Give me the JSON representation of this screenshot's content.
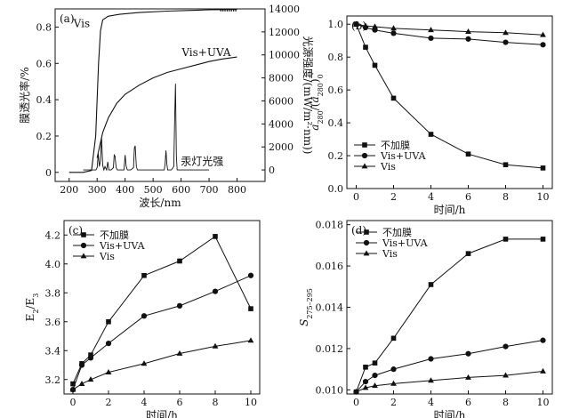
{
  "chart_data": [
    {
      "id": "a",
      "panel_label": "(a)",
      "type": "line",
      "xlabel": "波长/nm",
      "ylabel_left": "膜透光率/%",
      "ylabel_right": "光源强度/(mW/m²·nm))",
      "xlim": [
        150,
        900
      ],
      "ylim_left": [
        -0.05,
        0.9
      ],
      "ylim_right": [
        -1000,
        14000
      ],
      "xticks": [
        200,
        300,
        400,
        500,
        600,
        700,
        800
      ],
      "yticks_left": [
        0,
        0.2,
        0.4,
        0.6,
        0.8
      ],
      "yticks_right": [
        0,
        2000,
        4000,
        6000,
        8000,
        10000,
        12000,
        14000
      ],
      "annotations": {
        "vis": "Vis",
        "vis_uva": "Vis+UVA",
        "lamp": "汞灯光强"
      },
      "series": [
        {
          "name": "Vis",
          "axis": "left",
          "x": [
            200,
            250,
            280,
            295,
            305,
            312,
            320,
            340,
            380,
            450,
            550,
            650,
            700,
            750,
            800
          ],
          "y": [
            0,
            0,
            0.01,
            0.2,
            0.6,
            0.78,
            0.84,
            0.86,
            0.87,
            0.88,
            0.888,
            0.892,
            0.895,
            0.896,
            0.897
          ]
        },
        {
          "name": "Vis+UVA",
          "axis": "left",
          "x": [
            300,
            310,
            320,
            340,
            370,
            400,
            450,
            500,
            550,
            600,
            650,
            700,
            750,
            800
          ],
          "y": [
            0.08,
            0.15,
            0.22,
            0.3,
            0.38,
            0.43,
            0.48,
            0.52,
            0.55,
            0.57,
            0.59,
            0.61,
            0.625,
            0.635
          ]
        },
        {
          "name": "汞灯光强",
          "axis": "right",
          "x": [
            250,
            280,
            296,
            300,
            304,
            308,
            312,
            316,
            320,
            324,
            328,
            334,
            338,
            342,
            350,
            358,
            361,
            364,
            368,
            372,
            380,
            396,
            400,
            404,
            408,
            412,
            420,
            430,
            433,
            436,
            440,
            444,
            460,
            500,
            540,
            543,
            546,
            549,
            552,
            565,
            574,
            577,
            580,
            583,
            586,
            600,
            650,
            700
          ],
          "y": [
            0,
            0,
            0,
            200,
            1400,
            300,
            800,
            2800,
            400,
            0,
            300,
            0,
            700,
            0,
            0,
            200,
            1300,
            1200,
            200,
            0,
            0,
            0,
            1300,
            300,
            0,
            0,
            0,
            200,
            1900,
            2100,
            300,
            0,
            0,
            0,
            0,
            600,
            1700,
            500,
            0,
            0,
            300,
            4500,
            7500,
            1200,
            0,
            0,
            0,
            0
          ]
        }
      ]
    },
    {
      "id": "b",
      "panel_label": "(b)",
      "type": "line",
      "xlabel": "时间/h",
      "ylabel": "a280/(a280)0",
      "xlim": [
        -0.5,
        10.5
      ],
      "ylim": [
        0,
        1.05
      ],
      "xticks": [
        0,
        2,
        4,
        6,
        8,
        10
      ],
      "yticks": [
        0.0,
        0.2,
        0.4,
        0.6,
        0.8,
        1.0
      ],
      "legend_position": "bottom-left",
      "series": [
        {
          "name": "不加膜",
          "marker": "square",
          "x": [
            0,
            0.5,
            1,
            2,
            4,
            6,
            8,
            10
          ],
          "y": [
            1.0,
            0.86,
            0.75,
            0.55,
            0.33,
            0.21,
            0.145,
            0.125
          ]
        },
        {
          "name": "Vis+UVA",
          "marker": "circle",
          "x": [
            0,
            0.5,
            1,
            2,
            4,
            6,
            8,
            10
          ],
          "y": [
            1.0,
            0.98,
            0.965,
            0.945,
            0.915,
            0.91,
            0.89,
            0.875
          ]
        },
        {
          "name": "Vis",
          "marker": "triangle",
          "x": [
            0,
            0.5,
            1,
            2,
            4,
            6,
            8,
            10
          ],
          "y": [
            1.0,
            0.99,
            0.985,
            0.975,
            0.965,
            0.955,
            0.948,
            0.935
          ]
        }
      ]
    },
    {
      "id": "c",
      "panel_label": "(c)",
      "type": "line",
      "xlabel": "时间/h",
      "ylabel": "E2/E3",
      "xlim": [
        -0.5,
        10.5
      ],
      "ylim": [
        3.1,
        4.3
      ],
      "xticks": [
        0,
        2,
        4,
        6,
        8,
        10
      ],
      "yticks": [
        3.2,
        3.4,
        3.6,
        3.8,
        4.0,
        4.2
      ],
      "legend_position": "top-left",
      "series": [
        {
          "name": "不加膜",
          "marker": "square",
          "x": [
            0,
            0.5,
            1,
            2,
            4,
            6,
            8,
            10
          ],
          "y": [
            3.17,
            3.31,
            3.37,
            3.6,
            3.92,
            4.02,
            4.19,
            3.69
          ]
        },
        {
          "name": "Vis+UVA",
          "marker": "circle",
          "x": [
            0,
            0.5,
            1,
            2,
            4,
            6,
            8,
            10
          ],
          "y": [
            3.13,
            3.3,
            3.35,
            3.45,
            3.64,
            3.71,
            3.81,
            3.92
          ]
        },
        {
          "name": "Vis",
          "marker": "triangle",
          "x": [
            0,
            0.5,
            1,
            2,
            4,
            6,
            8,
            10
          ],
          "y": [
            3.13,
            3.17,
            3.2,
            3.25,
            3.31,
            3.38,
            3.43,
            3.47
          ]
        }
      ]
    },
    {
      "id": "d",
      "panel_label": "(d)",
      "type": "line",
      "xlabel": "时间/h",
      "ylabel": "S275–295",
      "xlim": [
        -0.5,
        10.5
      ],
      "ylim": [
        0.0098,
        0.0182
      ],
      "xticks": [
        0,
        2,
        4,
        6,
        8,
        10
      ],
      "yticks": [
        0.01,
        0.012,
        0.014,
        0.016,
        0.018
      ],
      "legend_position": "top-left",
      "series": [
        {
          "name": "不加膜",
          "marker": "square",
          "x": [
            0,
            0.5,
            1,
            2,
            4,
            6,
            8,
            10
          ],
          "y": [
            0.0099,
            0.0111,
            0.0113,
            0.0125,
            0.0151,
            0.0166,
            0.0173,
            0.0173
          ]
        },
        {
          "name": "Vis+UVA",
          "marker": "circle",
          "x": [
            0,
            0.5,
            1,
            2,
            4,
            6,
            8,
            10
          ],
          "y": [
            0.0099,
            0.0104,
            0.0107,
            0.011,
            0.0115,
            0.01175,
            0.0121,
            0.0124
          ]
        },
        {
          "name": "Vis",
          "marker": "triangle",
          "x": [
            0,
            0.5,
            1,
            2,
            4,
            6,
            8,
            10
          ],
          "y": [
            0.0099,
            0.0101,
            0.0102,
            0.0103,
            0.01045,
            0.0106,
            0.0107,
            0.0109
          ]
        }
      ]
    }
  ]
}
